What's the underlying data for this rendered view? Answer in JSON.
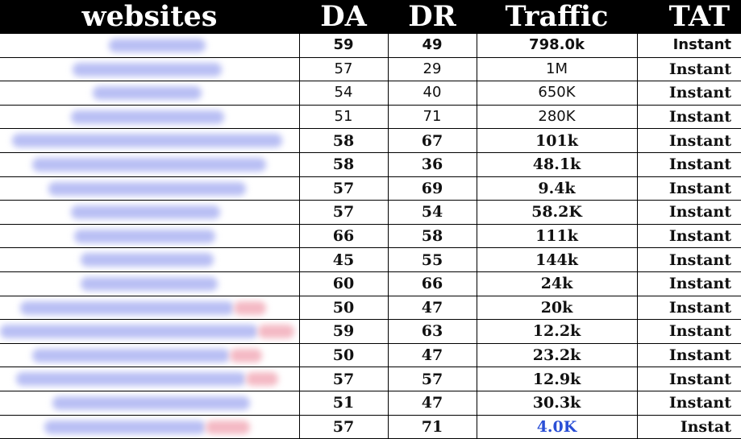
{
  "header": {
    "websites": "websites",
    "da": "DA",
    "dr": "DR",
    "traffic": "Traffic",
    "tat": "TAT"
  },
  "rows": [
    {
      "da": "59",
      "dr": "49",
      "traffic": "798.0k",
      "tat": "Instant"
    },
    {
      "da": "57",
      "dr": "29",
      "traffic": "1M",
      "tat": "Instant"
    },
    {
      "da": "54",
      "dr": "40",
      "traffic": "650K",
      "tat": "Instant"
    },
    {
      "da": "51",
      "dr": "71",
      "traffic": "280K",
      "tat": "Instant"
    },
    {
      "da": "58",
      "dr": "67",
      "traffic": "101k",
      "tat": "Instant"
    },
    {
      "da": "58",
      "dr": "36",
      "traffic": "48.1k",
      "tat": "Instant"
    },
    {
      "da": "57",
      "dr": "69",
      "traffic": "9.4k",
      "tat": "Instant"
    },
    {
      "da": "57",
      "dr": "54",
      "traffic": "58.2K",
      "tat": "Instant"
    },
    {
      "da": "66",
      "dr": "58",
      "traffic": "111k",
      "tat": "Instant"
    },
    {
      "da": "45",
      "dr": "55",
      "traffic": "144k",
      "tat": "Instant"
    },
    {
      "da": "60",
      "dr": "66",
      "traffic": "24k",
      "tat": "Instant"
    },
    {
      "da": "50",
      "dr": "47",
      "traffic": "20k",
      "tat": "Instant"
    },
    {
      "da": "59",
      "dr": "63",
      "traffic": "12.2k",
      "tat": "Instant"
    },
    {
      "da": "50",
      "dr": "47",
      "traffic": "23.2k",
      "tat": "Instant"
    },
    {
      "da": "57",
      "dr": "57",
      "traffic": "12.9k",
      "tat": "Instant"
    },
    {
      "da": "51",
      "dr": "47",
      "traffic": "30.3k",
      "tat": "Instant"
    },
    {
      "da": "57",
      "dr": "71",
      "traffic": "4.0K",
      "tat": "Instat"
    }
  ],
  "colors": {
    "header_bg": "#000000",
    "header_text": "#ffffff",
    "link_text": "#2a4fd6",
    "blur_blue": "#b9bff4",
    "blur_pink": "#f4b9c4"
  }
}
